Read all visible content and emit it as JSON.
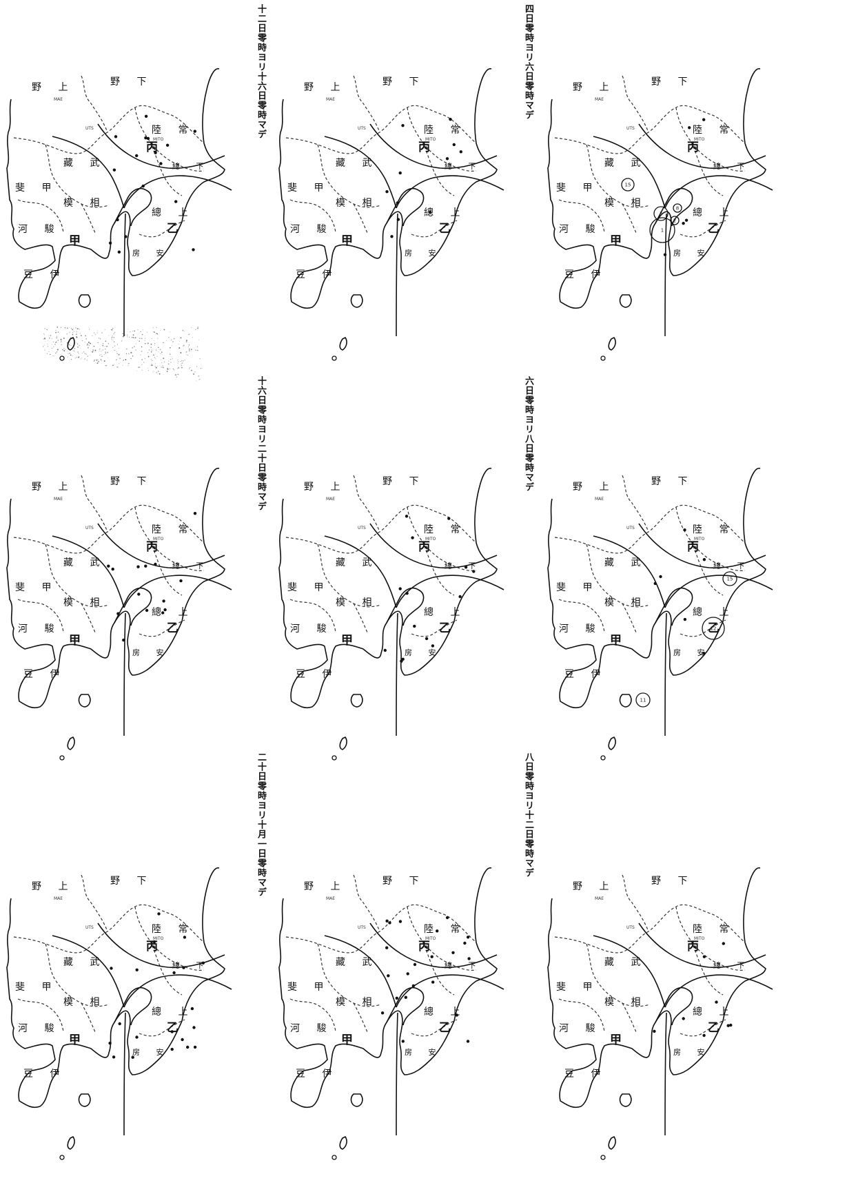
{
  "figure": {
    "legend": {
      "region_a": "甲",
      "region_b": "乙",
      "region_c": "丙"
    },
    "provinces": {
      "kozuke": "野 上",
      "shimotsuke": "野 下",
      "hitachi": "陸 常",
      "musashi": "藏 武",
      "kai": "斐 甲",
      "sagami": "模 相",
      "suruga": "河 駿",
      "izu": "豆 伊",
      "kazusa": "總 上",
      "shimosa": "總 下",
      "awa": "房 安"
    },
    "cities": {
      "maebashi": "MAE",
      "utsunomiya": "UTS",
      "mito": "MITO",
      "oshima": "大島"
    },
    "panels": [
      {
        "caption": "",
        "quake_dots": 17,
        "felt_circles": []
      },
      {
        "caption": "十二日零時ヨリ十六日零時マデ",
        "quake_dots": 11,
        "felt_circles": []
      },
      {
        "caption": "四日零時ヨリ六日零時マデ",
        "quake_dots": 5,
        "felt_circles": [
          "15",
          "1",
          "3",
          "8",
          "2"
        ]
      },
      {
        "caption": "",
        "quake_dots": 14,
        "felt_circles": []
      },
      {
        "caption": "十六日零時ヨリ二十日零時マデ",
        "quake_dots": 14,
        "felt_circles": []
      },
      {
        "caption": "六日零時ヨリ八日零時マデ",
        "quake_dots": 6,
        "felt_circles": [
          "15",
          "12",
          "11"
        ]
      },
      {
        "caption": "",
        "quake_dots": 20,
        "felt_circles": []
      },
      {
        "caption": "二十日零時ヨリ十月一日零時マデ",
        "quake_dots": 22,
        "felt_circles": []
      },
      {
        "caption": "八日零時ヨリ十二日零時マデ",
        "quake_dots": 8,
        "felt_circles": []
      }
    ]
  }
}
